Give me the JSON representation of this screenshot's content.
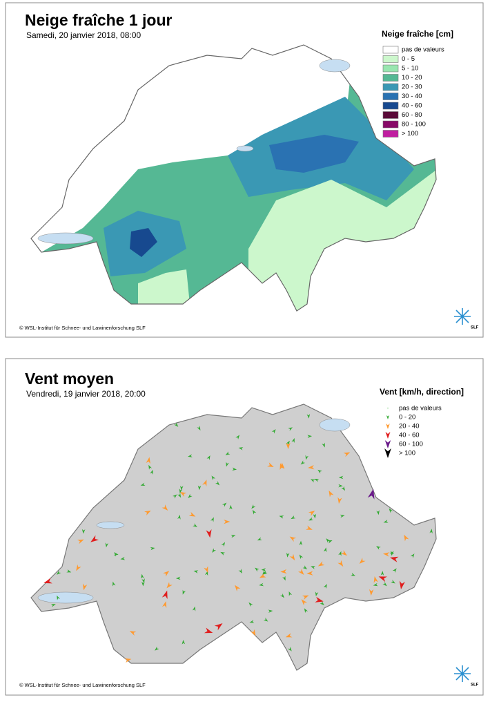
{
  "panels": [
    {
      "title": "Neige fraîche 1 jour",
      "subtitle": "Samedi, 20 janvier 2018, 08:00",
      "legend": {
        "title": "Neige fraîche [cm]",
        "items": [
          {
            "label": "pas de valeurs",
            "color": "#ffffff"
          },
          {
            "label": "0 - 5",
            "color": "#ccf7cc"
          },
          {
            "label": "5 - 10",
            "color": "#99e6b0"
          },
          {
            "label": "10 - 20",
            "color": "#55b894"
          },
          {
            "label": "20 - 30",
            "color": "#3a98b4"
          },
          {
            "label": "30 - 40",
            "color": "#2a72b2"
          },
          {
            "label": "40 - 60",
            "color": "#17498f"
          },
          {
            "label": "60 - 80",
            "color": "#5a0a38"
          },
          {
            "label": "80 - 100",
            "color": "#880a68"
          },
          {
            "label": "> 100",
            "color": "#c01ea0"
          }
        ]
      },
      "copyright": "© WSL-Institut für Schnee- und Lawinenforschung SLF",
      "logo": "SLF"
    },
    {
      "title": "Vent moyen",
      "subtitle": "Vendredi, 19 janvier 2018, 20:00",
      "legend": {
        "title": "Vent [km/h, direction]",
        "items": [
          {
            "label": "pas de valeurs",
            "color": "#9fdc9f"
          },
          {
            "label": "0 - 20",
            "color": "#33aa33"
          },
          {
            "label": "20 - 40",
            "color": "#ff9a30"
          },
          {
            "label": "40 - 60",
            "color": "#e01e1e"
          },
          {
            "label": "60 - 100",
            "color": "#6a1a8a"
          },
          {
            "label": "> 100",
            "color": "#000000"
          }
        ]
      },
      "copyright": "© WSL-Institut für Schnee- und Lawinenforschung SLF",
      "logo": "SLF"
    }
  ]
}
